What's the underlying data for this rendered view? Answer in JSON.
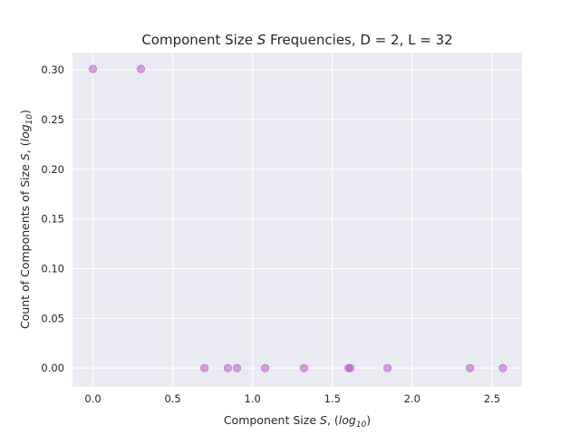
{
  "chart_data": {
    "type": "scatter",
    "title_parts": [
      "Component Size ",
      "S",
      " Frequencies, D = 2, L = 32"
    ],
    "xlabel_parts": [
      "Component Size ",
      "S",
      ", (",
      "log",
      "10",
      ")"
    ],
    "ylabel_parts": [
      "Count of Components of Size ",
      "S",
      ", (",
      "log",
      "10",
      ")"
    ],
    "xlim": [
      -0.128,
      2.688
    ],
    "ylim": [
      -0.019,
      0.3175
    ],
    "xticks": [
      0.0,
      0.5,
      1.0,
      1.5,
      2.0,
      2.5
    ],
    "xtick_labels": [
      "0.0",
      "0.5",
      "1.0",
      "1.5",
      "2.0",
      "2.5"
    ],
    "yticks": [
      0.0,
      0.05,
      0.1,
      0.15,
      0.2,
      0.25,
      0.3
    ],
    "ytick_labels": [
      "0.00",
      "0.05",
      "0.10",
      "0.15",
      "0.20",
      "0.25",
      "0.30"
    ],
    "grid": true,
    "background": "#eaeaf2",
    "marker_color": "#b04fc0",
    "series": [
      {
        "points": [
          {
            "x": 0.0,
            "y": 0.301
          },
          {
            "x": 0.301,
            "y": 0.301
          },
          {
            "x": 0.699,
            "y": 0.0
          },
          {
            "x": 0.845,
            "y": 0.0
          },
          {
            "x": 0.903,
            "y": 0.0
          },
          {
            "x": 1.079,
            "y": 0.0
          },
          {
            "x": 1.322,
            "y": 0.0
          },
          {
            "x": 1.602,
            "y": 0.0
          },
          {
            "x": 1.613,
            "y": 0.0
          },
          {
            "x": 1.845,
            "y": 0.0
          },
          {
            "x": 2.362,
            "y": 0.0
          },
          {
            "x": 2.568,
            "y": 0.0
          }
        ]
      }
    ]
  }
}
